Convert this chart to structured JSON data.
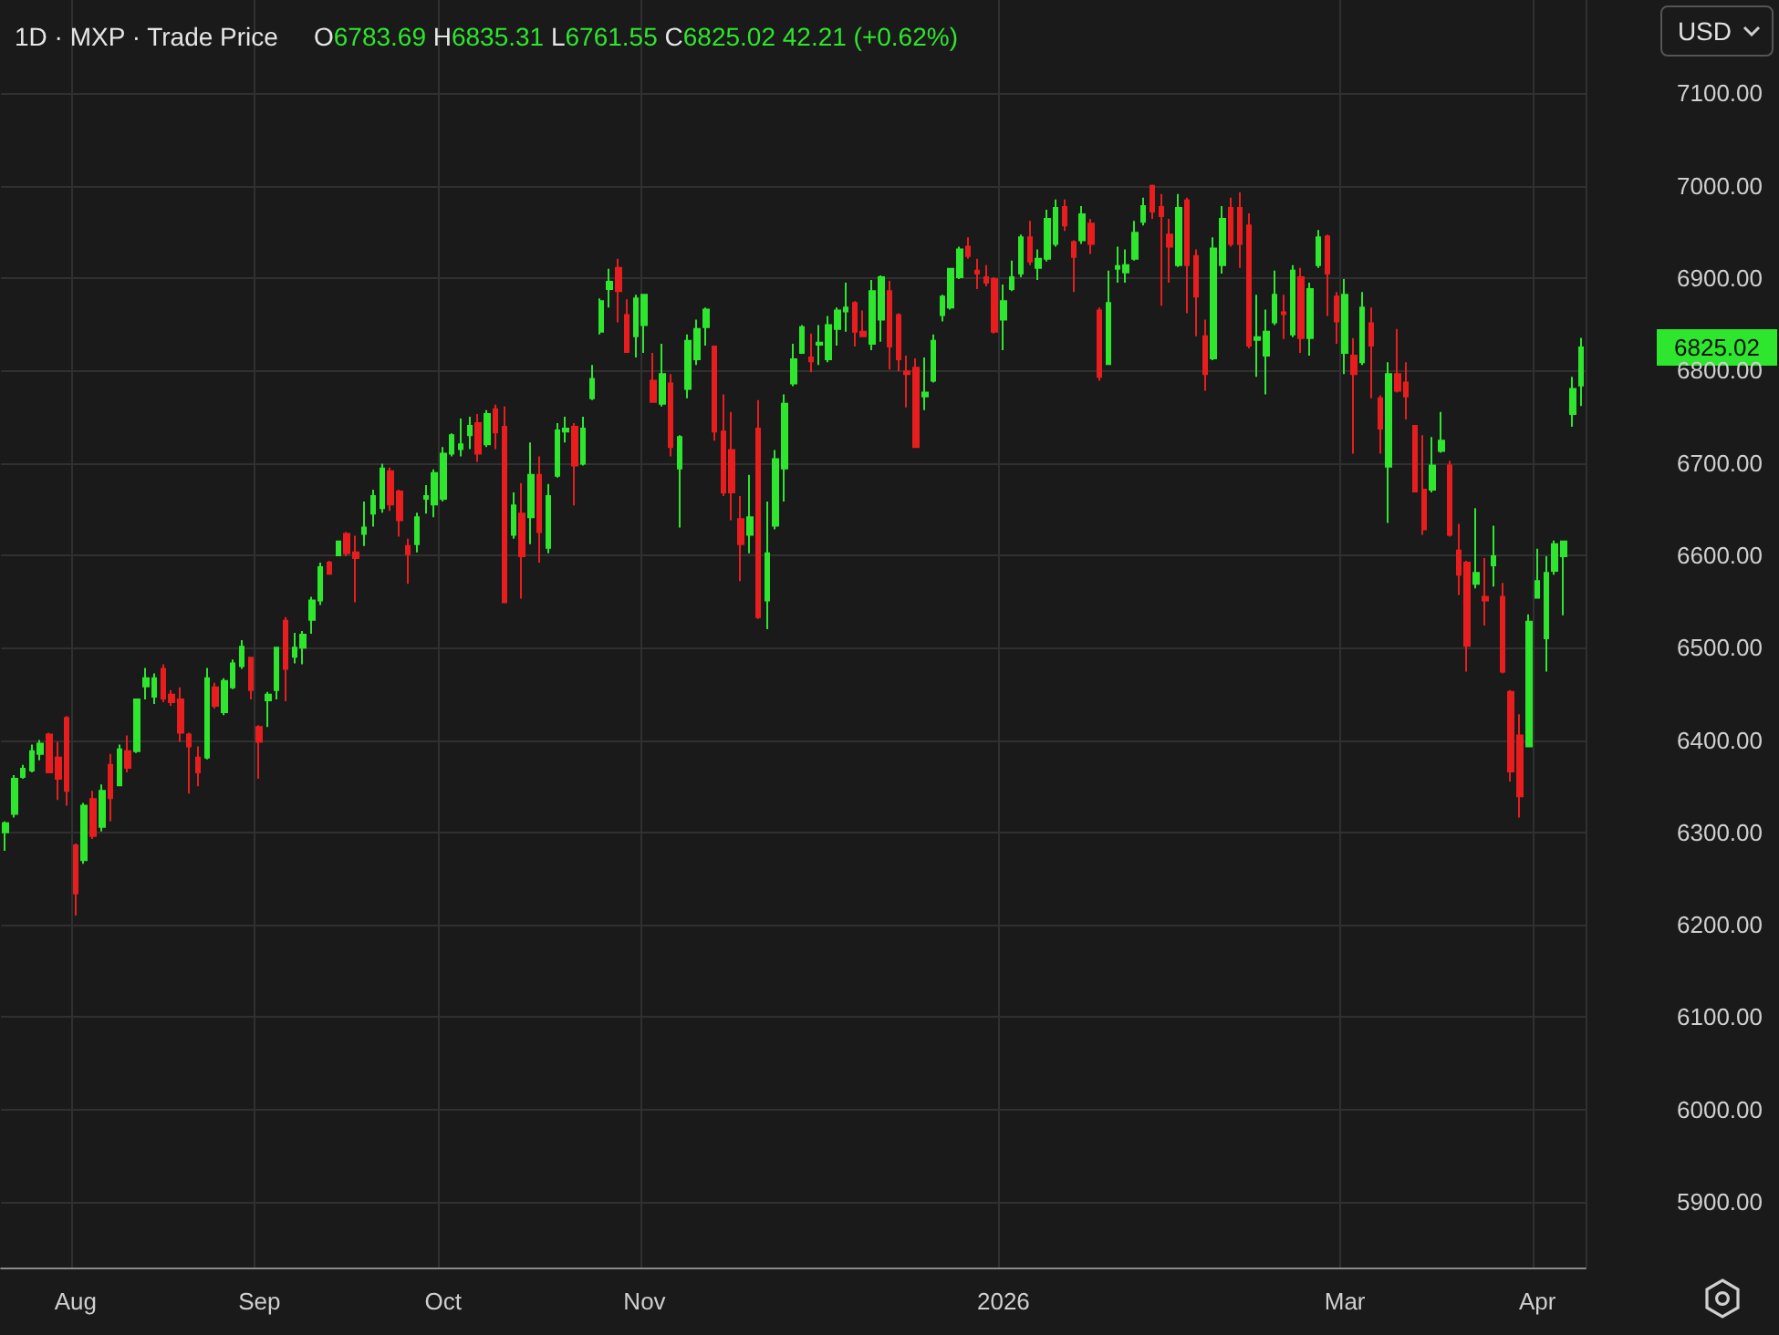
{
  "chart_data": {
    "type": "candlestick",
    "title": "1D · MXP · Trade Price",
    "subtitle": "O6783.69 H6835.31 L6761.55 C6825.02 42.21 (+0.62%)",
    "categories": [
      null,
      null,
      null,
      null,
      null,
      null,
      null,
      null,
      "Aug",
      null,
      null,
      null,
      null,
      null,
      null,
      null,
      null,
      null,
      null,
      null,
      null,
      null,
      null,
      null,
      null,
      null,
      null,
      null,
      null,
      "Sep",
      null,
      null,
      null,
      null,
      null,
      null,
      null,
      null,
      null,
      null,
      null,
      null,
      null,
      null,
      null,
      null,
      null,
      null,
      null,
      null,
      "Oct",
      null,
      null,
      null,
      null,
      null,
      null,
      null,
      null,
      null,
      null,
      null,
      null,
      null,
      null,
      null,
      null,
      null,
      null,
      null,
      null,
      null,
      null,
      "Nov",
      null,
      null,
      null,
      null,
      null,
      null,
      null,
      null,
      null,
      null,
      null,
      null,
      null,
      null,
      null,
      null,
      null,
      null,
      null,
      null,
      null,
      null,
      null,
      null,
      null,
      null,
      null,
      null,
      null,
      null,
      null,
      null,
      null,
      null,
      null,
      null,
      null,
      null,
      null,
      null,
      "2026",
      null,
      null,
      null,
      null,
      null,
      null,
      null,
      null,
      null,
      null,
      null,
      null,
      null,
      null,
      null,
      null,
      null,
      null,
      null,
      null,
      null,
      null,
      null,
      null,
      null,
      null,
      null,
      null,
      null,
      null,
      null,
      null,
      null,
      null,
      null,
      null,
      null,
      null,
      "Mar",
      null,
      null,
      null,
      null,
      null,
      null,
      null,
      null,
      null,
      null,
      null,
      null,
      null,
      null,
      null,
      null,
      null,
      null,
      null,
      null,
      null,
      "Apr",
      null,
      null,
      null,
      null,
      null
    ],
    "ohlc": [
      [
        6300,
        6312,
        6280,
        6310
      ],
      [
        6320,
        6362,
        6316,
        6358
      ],
      [
        6360,
        6373,
        6358,
        6369
      ],
      [
        6367,
        6395,
        6365,
        6388
      ],
      [
        6385,
        6400,
        6378,
        6396
      ],
      [
        6406,
        6408,
        6364,
        6365
      ],
      [
        6381,
        6398,
        6335,
        6358
      ],
      [
        6424,
        6426,
        6329,
        6345
      ],
      [
        6286,
        6288,
        6210,
        6234
      ],
      [
        6270,
        6332,
        6266,
        6329
      ],
      [
        6336,
        6345,
        6293,
        6296
      ],
      [
        6306,
        6352,
        6301,
        6345
      ],
      [
        6373,
        6385,
        6312,
        6337
      ],
      [
        6351,
        6395,
        6350,
        6390
      ],
      [
        6388,
        6405,
        6365,
        6370
      ],
      [
        6388,
        6445,
        6386,
        6444
      ],
      [
        6458,
        6478,
        6444,
        6467
      ],
      [
        6447,
        6472,
        6439,
        6467
      ],
      [
        6477,
        6482,
        6441,
        6445
      ],
      [
        6449,
        6454,
        6437,
        6441
      ],
      [
        6444,
        6457,
        6398,
        6408
      ],
      [
        6406,
        6408,
        6342,
        6393
      ],
      [
        6381,
        6393,
        6350,
        6365
      ],
      [
        6381,
        6478,
        6379,
        6467
      ],
      [
        6457,
        6462,
        6434,
        6437
      ],
      [
        6430,
        6467,
        6427,
        6464
      ],
      [
        6457,
        6487,
        6455,
        6483
      ],
      [
        6480,
        6508,
        6477,
        6501
      ],
      [
        6489,
        6490,
        6444,
        6454
      ],
      [
        6414,
        6416,
        6358,
        6398
      ],
      [
        6443,
        6452,
        6414,
        6449
      ],
      [
        6454,
        6501,
        6444,
        6500
      ],
      [
        6529,
        6533,
        6442,
        6477
      ],
      [
        6490,
        6516,
        6483,
        6500
      ],
      [
        6500,
        6518,
        6482,
        6514
      ],
      [
        6530,
        6555,
        6515,
        6551
      ],
      [
        6551,
        6592,
        6546,
        6587
      ],
      [
        6592,
        6594,
        6579,
        6580
      ],
      [
        6600,
        6616,
        6600,
        6615
      ],
      [
        6623,
        6625,
        6599,
        6602
      ],
      [
        6603,
        6621,
        6549,
        6597
      ],
      [
        6623,
        6658,
        6610,
        6630
      ],
      [
        6645,
        6671,
        6631,
        6664
      ],
      [
        6651,
        6699,
        6646,
        6694
      ],
      [
        6691,
        6695,
        6648,
        6655
      ],
      [
        6669,
        6671,
        6620,
        6638
      ],
      [
        6610,
        6618,
        6569,
        6601
      ],
      [
        6612,
        6646,
        6603,
        6641
      ],
      [
        6661,
        6676,
        6645,
        6664
      ],
      [
        6655,
        6693,
        6641,
        6689
      ],
      [
        6661,
        6717,
        6658,
        6710
      ],
      [
        6710,
        6732,
        6707,
        6730
      ],
      [
        6715,
        6748,
        6707,
        6720
      ],
      [
        6730,
        6750,
        6715,
        6740
      ],
      [
        6743,
        6753,
        6701,
        6710
      ],
      [
        6720,
        6757,
        6717,
        6753
      ],
      [
        6758,
        6763,
        6715,
        6733
      ],
      [
        6739,
        6761,
        6549,
        6549
      ],
      [
        6622,
        6668,
        6618,
        6654
      ],
      [
        6645,
        6678,
        6553,
        6599
      ],
      [
        6641,
        6722,
        6612,
        6687
      ],
      [
        6687,
        6707,
        6592,
        6625
      ],
      [
        6608,
        6677,
        6602,
        6664
      ],
      [
        6686,
        6743,
        6684,
        6735
      ],
      [
        6734,
        6750,
        6722,
        6737
      ],
      [
        6739,
        6743,
        6654,
        6697
      ],
      [
        6699,
        6750,
        6697,
        6737
      ],
      [
        6770,
        6806,
        6768,
        6791
      ],
      [
        6842,
        6878,
        6839,
        6875
      ],
      [
        6888,
        6910,
        6868,
        6896
      ],
      [
        6911,
        6921,
        6852,
        6886
      ],
      [
        6860,
        6877,
        6819,
        6820
      ],
      [
        6837,
        6882,
        6814,
        6878
      ],
      [
        6849,
        6882,
        6819,
        6882
      ],
      [
        6789,
        6819,
        6765,
        6766
      ],
      [
        6764,
        6829,
        6761,
        6796
      ],
      [
        6786,
        6796,
        6707,
        6717
      ],
      [
        6694,
        6730,
        6630,
        6728
      ],
      [
        6780,
        6839,
        6770,
        6832
      ],
      [
        6812,
        6855,
        6806,
        6845
      ],
      [
        6847,
        6868,
        6827,
        6866
      ],
      [
        6826,
        6827,
        6724,
        6734
      ],
      [
        6734,
        6774,
        6664,
        6668
      ],
      [
        6714,
        6755,
        6638,
        6668
      ],
      [
        6639,
        6664,
        6572,
        6612
      ],
      [
        6622,
        6687,
        6602,
        6641
      ],
      [
        6737,
        6768,
        6531,
        6533
      ],
      [
        6551,
        6658,
        6520,
        6602
      ],
      [
        6632,
        6714,
        6628,
        6704
      ],
      [
        6694,
        6774,
        6658,
        6764
      ],
      [
        6786,
        6829,
        6783,
        6812
      ],
      [
        6819,
        6849,
        6818,
        6847
      ],
      [
        6814,
        6840,
        6798,
        6810
      ],
      [
        6828,
        6849,
        6806,
        6830
      ],
      [
        6812,
        6859,
        6809,
        6849
      ],
      [
        6845,
        6868,
        6827,
        6865
      ],
      [
        6864,
        6895,
        6842,
        6868
      ],
      [
        6873,
        6875,
        6826,
        6842
      ],
      [
        6842,
        6865,
        6836,
        6837
      ],
      [
        6829,
        6898,
        6822,
        6886
      ],
      [
        6855,
        6903,
        6831,
        6901
      ],
      [
        6886,
        6897,
        6801,
        6826
      ],
      [
        6860,
        6862,
        6799,
        6812
      ],
      [
        6799,
        6816,
        6760,
        6796
      ],
      [
        6803,
        6813,
        6717,
        6717
      ],
      [
        6772,
        6814,
        6757,
        6776
      ],
      [
        6789,
        6839,
        6787,
        6832
      ],
      [
        6860,
        6882,
        6853,
        6880
      ],
      [
        6868,
        6911,
        6866,
        6910
      ],
      [
        6901,
        6934,
        6899,
        6931
      ],
      [
        6934,
        6944,
        6921,
        6924
      ],
      [
        6908,
        6921,
        6888,
        6905
      ],
      [
        6901,
        6914,
        6891,
        6895
      ],
      [
        6899,
        6901,
        6840,
        6842
      ],
      [
        6855,
        6893,
        6822,
        6875
      ],
      [
        6888,
        6919,
        6886,
        6901
      ],
      [
        6905,
        6947,
        6901,
        6944
      ],
      [
        6944,
        6962,
        6914,
        6918
      ],
      [
        6911,
        6931,
        6898,
        6921
      ],
      [
        6921,
        6974,
        6918,
        6964
      ],
      [
        6937,
        6985,
        6934,
        6976
      ],
      [
        6977,
        6985,
        6951,
        6957
      ],
      [
        6939,
        6941,
        6885,
        6923
      ],
      [
        6941,
        6978,
        6937,
        6969
      ],
      [
        6959,
        6964,
        6926,
        6937
      ],
      [
        6865,
        6868,
        6789,
        6793
      ],
      [
        6807,
        6908,
        6806,
        6873
      ],
      [
        6910,
        6934,
        6895,
        6913
      ],
      [
        6906,
        6931,
        6895,
        6914
      ],
      [
        6921,
        6962,
        6919,
        6949
      ],
      [
        6961,
        6987,
        6957,
        6978
      ],
      [
        7000,
        7001,
        6964,
        6972
      ],
      [
        6977,
        6991,
        6870,
        6967
      ],
      [
        6947,
        6964,
        6895,
        6934
      ],
      [
        6914,
        6991,
        6912,
        6976
      ],
      [
        6984,
        6987,
        6862,
        6914
      ],
      [
        6924,
        6931,
        6837,
        6880
      ],
      [
        6837,
        6855,
        6778,
        6796
      ],
      [
        6813,
        6944,
        6811,
        6932
      ],
      [
        6914,
        6978,
        6905,
        6964
      ],
      [
        6976,
        6987,
        6934,
        6937
      ],
      [
        6976,
        6993,
        6911,
        6937
      ],
      [
        6957,
        6970,
        6824,
        6827
      ],
      [
        6833,
        6882,
        6793,
        6836
      ],
      [
        6816,
        6866,
        6774,
        6842
      ],
      [
        6852,
        6908,
        6849,
        6882
      ],
      [
        6863,
        6882,
        6834,
        6861
      ],
      [
        6839,
        6914,
        6836,
        6908
      ],
      [
        6901,
        6911,
        6819,
        6835
      ],
      [
        6835,
        6895,
        6816,
        6888
      ],
      [
        6914,
        6952,
        6911,
        6944
      ],
      [
        6945,
        6947,
        6859,
        6905
      ],
      [
        6880,
        6885,
        6829,
        6853
      ],
      [
        6819,
        6899,
        6796,
        6882
      ],
      [
        6816,
        6835,
        6710,
        6796
      ],
      [
        6809,
        6885,
        6806,
        6868
      ],
      [
        6851,
        6868,
        6770,
        6827
      ],
      [
        6770,
        6773,
        6710,
        6737
      ],
      [
        6696,
        6809,
        6635,
        6796
      ],
      [
        6796,
        6845,
        6776,
        6778
      ],
      [
        6787,
        6809,
        6747,
        6772
      ],
      [
        6740,
        6741,
        6668,
        6669
      ],
      [
        6671,
        6730,
        6622,
        6628
      ],
      [
        6671,
        6728,
        6668,
        6697
      ],
      [
        6713,
        6755,
        6711,
        6724
      ],
      [
        6697,
        6702,
        6620,
        6622
      ],
      [
        6605,
        6634,
        6557,
        6579
      ],
      [
        6592,
        6594,
        6474,
        6502
      ],
      [
        6569,
        6651,
        6564,
        6581
      ],
      [
        6555,
        6597,
        6524,
        6551
      ],
      [
        6589,
        6632,
        6566,
        6599
      ],
      [
        6555,
        6570,
        6472,
        6474
      ],
      [
        6452,
        6454,
        6355,
        6366
      ],
      [
        6405,
        6428,
        6316,
        6339
      ],
      [
        6393,
        6536,
        6393,
        6528
      ],
      [
        6554,
        6607,
        6553,
        6572
      ],
      [
        6510,
        6599,
        6474,
        6581
      ],
      [
        6583,
        6616,
        6579,
        6612
      ],
      [
        6599,
        6616,
        6535,
        6615
      ],
      [
        6753,
        6793,
        6739,
        6780
      ],
      [
        6783.69,
        6835.31,
        6761.55,
        6825.02
      ]
    ],
    "colors": [
      "#2ee62e",
      "#2ee62e",
      "#2ee62e",
      "#2ee62e",
      "#2ee62e",
      "#e81e1e",
      "#e81e1e",
      "#e81e1e",
      "#e81e1e",
      "#2ee62e",
      "#e81e1e",
      "#2ee62e",
      "#e81e1e",
      "#2ee62e",
      "#e81e1e",
      "#2ee62e",
      "#2ee62e",
      "#2ee62e",
      "#e81e1e",
      "#e81e1e",
      "#e81e1e",
      "#e81e1e",
      "#e81e1e",
      "#2ee62e",
      "#e81e1e",
      "#2ee62e",
      "#2ee62e",
      "#2ee62e",
      "#e81e1e",
      "#e81e1e",
      "#2ee62e",
      "#2ee62e",
      "#e81e1e",
      "#2ee62e",
      "#2ee62e",
      "#2ee62e",
      "#2ee62e",
      "#e81e1e",
      "#2ee62e",
      "#e81e1e",
      "#e81e1e",
      "#2ee62e",
      "#2ee62e",
      "#2ee62e",
      "#e81e1e",
      "#e81e1e",
      "#e81e1e",
      "#2ee62e",
      "#2ee62e",
      "#2ee62e",
      "#2ee62e",
      "#2ee62e",
      "#2ee62e",
      "#2ee62e",
      "#e81e1e",
      "#2ee62e",
      "#e81e1e",
      "#e81e1e",
      "#2ee62e",
      "#e81e1e",
      "#2ee62e",
      "#e81e1e",
      "#2ee62e",
      "#2ee62e",
      "#2ee62e",
      "#e81e1e",
      "#2ee62e",
      "#2ee62e",
      "#2ee62e",
      "#2ee62e",
      "#e81e1e",
      "#e81e1e",
      "#2ee62e",
      "#2ee62e",
      "#e81e1e",
      "#2ee62e",
      "#e81e1e",
      "#2ee62e",
      "#2ee62e",
      "#2ee62e",
      "#2ee62e",
      "#e81e1e",
      "#e81e1e",
      "#e81e1e",
      "#e81e1e",
      "#2ee62e",
      "#e81e1e",
      "#2ee62e",
      "#2ee62e",
      "#2ee62e",
      "#2ee62e",
      "#2ee62e",
      "#e81e1e",
      "#2ee62e",
      "#2ee62e",
      "#2ee62e",
      "#2ee62e",
      "#e81e1e",
      "#e81e1e",
      "#2ee62e",
      "#2ee62e",
      "#e81e1e",
      "#e81e1e",
      "#e81e1e",
      "#e81e1e",
      "#2ee62e",
      "#2ee62e",
      "#2ee62e",
      "#2ee62e",
      "#2ee62e",
      "#e81e1e",
      "#e81e1e",
      "#e81e1e",
      "#e81e1e",
      "#2ee62e",
      "#2ee62e",
      "#2ee62e",
      "#e81e1e",
      "#2ee62e",
      "#2ee62e",
      "#2ee62e",
      "#e81e1e",
      "#e81e1e",
      "#2ee62e",
      "#e81e1e",
      "#e81e1e",
      "#2ee62e",
      "#2ee62e",
      "#2ee62e",
      "#2ee62e",
      "#2ee62e",
      "#e81e1e",
      "#e81e1e",
      "#e81e1e",
      "#2ee62e",
      "#e81e1e",
      "#e81e1e",
      "#e81e1e",
      "#2ee62e",
      "#2ee62e",
      "#e81e1e",
      "#e81e1e",
      "#e81e1e",
      "#2ee62e",
      "#2ee62e",
      "#2ee62e",
      "#e81e1e",
      "#2ee62e",
      "#e81e1e",
      "#2ee62e",
      "#2ee62e",
      "#e81e1e",
      "#e81e1e",
      "#2ee62e",
      "#e81e1e",
      "#2ee62e",
      "#e81e1e",
      "#e81e1e",
      "#2ee62e",
      "#e81e1e",
      "#e81e1e",
      "#e81e1e",
      "#e81e1e",
      "#2ee62e",
      "#2ee62e",
      "#e81e1e",
      "#e81e1e",
      "#e81e1e",
      "#2ee62e",
      "#e81e1e",
      "#2ee62e",
      "#e81e1e",
      "#e81e1e",
      "#e81e1e",
      "#2ee62e",
      "#2ee62e",
      "#2ee62e",
      "#2ee62e",
      "#2ee62e",
      "#2ee62e",
      "#2ee62e"
    ],
    "ylim": [
      5829,
      7201
    ],
    "yticks": [
      {
        "value": 5900,
        "label": "5900.00"
      },
      {
        "value": 6000,
        "label": "6000.00"
      },
      {
        "value": 6100,
        "label": "6100.00"
      },
      {
        "value": 6200,
        "label": "6200.00"
      },
      {
        "value": 6300,
        "label": "6300.00"
      },
      {
        "value": 6400,
        "label": "6400.00"
      },
      {
        "value": 6500,
        "label": "6500.00"
      },
      {
        "value": 6600,
        "label": "6600.00"
      },
      {
        "value": 6700,
        "label": "6700.00"
      },
      {
        "value": 6800,
        "label": "6800.00"
      },
      {
        "value": 6900,
        "label": "6900.00"
      },
      {
        "value": 7000,
        "label": "7000.00"
      },
      {
        "value": 7100,
        "label": "7100.00"
      }
    ],
    "grid": true,
    "annotations": [
      "6825.02",
      "USD"
    ]
  }
}
